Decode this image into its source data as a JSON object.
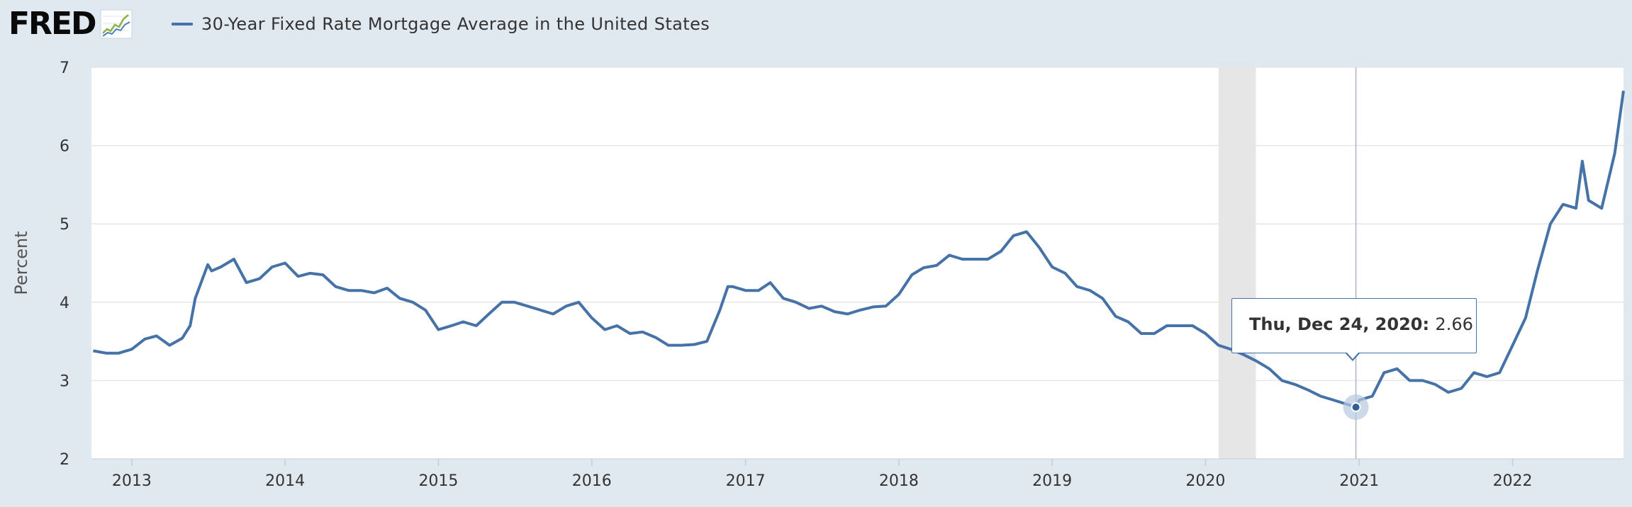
{
  "header": {
    "logo_text": "FRED",
    "logo_graph_icon": "line-chart-icon",
    "legend_label": "30-Year Fixed Rate Mortgage Average in the United States",
    "series_color": "#4572a7"
  },
  "tooltip": {
    "date": "Thu, Dec 24, 2020",
    "value": "2.66"
  },
  "chart_data": {
    "type": "line",
    "title": "",
    "xlabel": "",
    "ylabel": "Percent",
    "ylim": [
      2,
      7
    ],
    "xlim": [
      "2012-09-27",
      "2022-09-22"
    ],
    "yticks": [
      2,
      3,
      4,
      5,
      6,
      7
    ],
    "xticks": [
      "2013",
      "2014",
      "2015",
      "2016",
      "2017",
      "2018",
      "2019",
      "2020",
      "2021",
      "2022"
    ],
    "grid": true,
    "recession_band": [
      "2020-02-01",
      "2020-04-30"
    ],
    "highlight_point": {
      "x": "2020-12-24",
      "y": 2.66
    },
    "series": [
      {
        "name": "30-Year Fixed Rate Mortgage Average in the United States",
        "color": "#4572a7",
        "x": [
          "2012-10-01",
          "2012-11-01",
          "2012-12-01",
          "2013-01-01",
          "2013-02-01",
          "2013-03-01",
          "2013-04-01",
          "2013-05-01",
          "2013-05-20",
          "2013-06-01",
          "2013-07-01",
          "2013-07-10",
          "2013-08-01",
          "2013-09-01",
          "2013-10-01",
          "2013-11-01",
          "2013-12-01",
          "2014-01-01",
          "2014-02-01",
          "2014-03-01",
          "2014-04-01",
          "2014-05-01",
          "2014-06-01",
          "2014-07-01",
          "2014-08-01",
          "2014-09-01",
          "2014-10-01",
          "2014-11-01",
          "2014-12-01",
          "2015-01-01",
          "2015-02-01",
          "2015-03-01",
          "2015-04-01",
          "2015-05-01",
          "2015-06-01",
          "2015-07-01",
          "2015-08-01",
          "2015-09-01",
          "2015-10-01",
          "2015-11-01",
          "2015-12-01",
          "2016-01-01",
          "2016-02-01",
          "2016-03-01",
          "2016-04-01",
          "2016-05-01",
          "2016-06-01",
          "2016-07-01",
          "2016-08-01",
          "2016-09-01",
          "2016-10-01",
          "2016-11-01",
          "2016-11-20",
          "2016-12-01",
          "2017-01-01",
          "2017-02-01",
          "2017-03-01",
          "2017-04-01",
          "2017-05-01",
          "2017-06-01",
          "2017-07-01",
          "2017-08-01",
          "2017-09-01",
          "2017-10-01",
          "2017-11-01",
          "2017-12-01",
          "2018-01-01",
          "2018-02-01",
          "2018-03-01",
          "2018-04-01",
          "2018-05-01",
          "2018-06-01",
          "2018-07-01",
          "2018-08-01",
          "2018-09-01",
          "2018-10-01",
          "2018-11-01",
          "2018-12-01",
          "2019-01-01",
          "2019-02-01",
          "2019-03-01",
          "2019-04-01",
          "2019-05-01",
          "2019-06-01",
          "2019-07-01",
          "2019-08-01",
          "2019-09-01",
          "2019-10-01",
          "2019-11-01",
          "2019-12-01",
          "2020-01-01",
          "2020-02-01",
          "2020-03-01",
          "2020-04-01",
          "2020-05-01",
          "2020-06-01",
          "2020-07-01",
          "2020-08-01",
          "2020-09-01",
          "2020-10-01",
          "2020-11-01",
          "2020-12-24",
          "2021-01-01",
          "2021-02-01",
          "2021-03-01",
          "2021-04-01",
          "2021-05-01",
          "2021-06-01",
          "2021-07-01",
          "2021-08-01",
          "2021-09-01",
          "2021-10-01",
          "2021-11-01",
          "2021-12-01",
          "2022-01-01",
          "2022-02-01",
          "2022-03-01",
          "2022-04-01",
          "2022-05-01",
          "2022-06-01",
          "2022-06-16",
          "2022-07-01",
          "2022-08-01",
          "2022-09-01",
          "2022-09-22"
        ],
        "y": [
          3.38,
          3.35,
          3.35,
          3.4,
          3.53,
          3.57,
          3.45,
          3.54,
          3.7,
          4.05,
          4.48,
          4.4,
          4.45,
          4.55,
          4.25,
          4.3,
          4.45,
          4.5,
          4.33,
          4.37,
          4.35,
          4.2,
          4.15,
          4.15,
          4.12,
          4.18,
          4.05,
          4.0,
          3.9,
          3.65,
          3.7,
          3.75,
          3.7,
          3.85,
          4.0,
          4.0,
          3.95,
          3.9,
          3.85,
          3.95,
          4.0,
          3.8,
          3.65,
          3.7,
          3.6,
          3.62,
          3.55,
          3.45,
          3.45,
          3.46,
          3.5,
          3.9,
          4.2,
          4.2,
          4.15,
          4.15,
          4.25,
          4.05,
          4.0,
          3.92,
          3.95,
          3.88,
          3.85,
          3.9,
          3.94,
          3.95,
          4.1,
          4.35,
          4.44,
          4.47,
          4.6,
          4.55,
          4.55,
          4.55,
          4.65,
          4.85,
          4.9,
          4.7,
          4.45,
          4.37,
          4.2,
          4.15,
          4.05,
          3.82,
          3.75,
          3.6,
          3.6,
          3.7,
          3.7,
          3.7,
          3.6,
          3.45,
          3.4,
          3.33,
          3.25,
          3.15,
          3.0,
          2.95,
          2.88,
          2.8,
          2.75,
          2.66,
          2.75,
          2.8,
          3.1,
          3.15,
          3.0,
          3.0,
          2.95,
          2.85,
          2.9,
          3.1,
          3.05,
          3.1,
          3.45,
          3.8,
          4.4,
          5.0,
          5.25,
          5.2,
          5.8,
          5.3,
          5.2,
          5.9,
          6.7
        ]
      }
    ]
  }
}
